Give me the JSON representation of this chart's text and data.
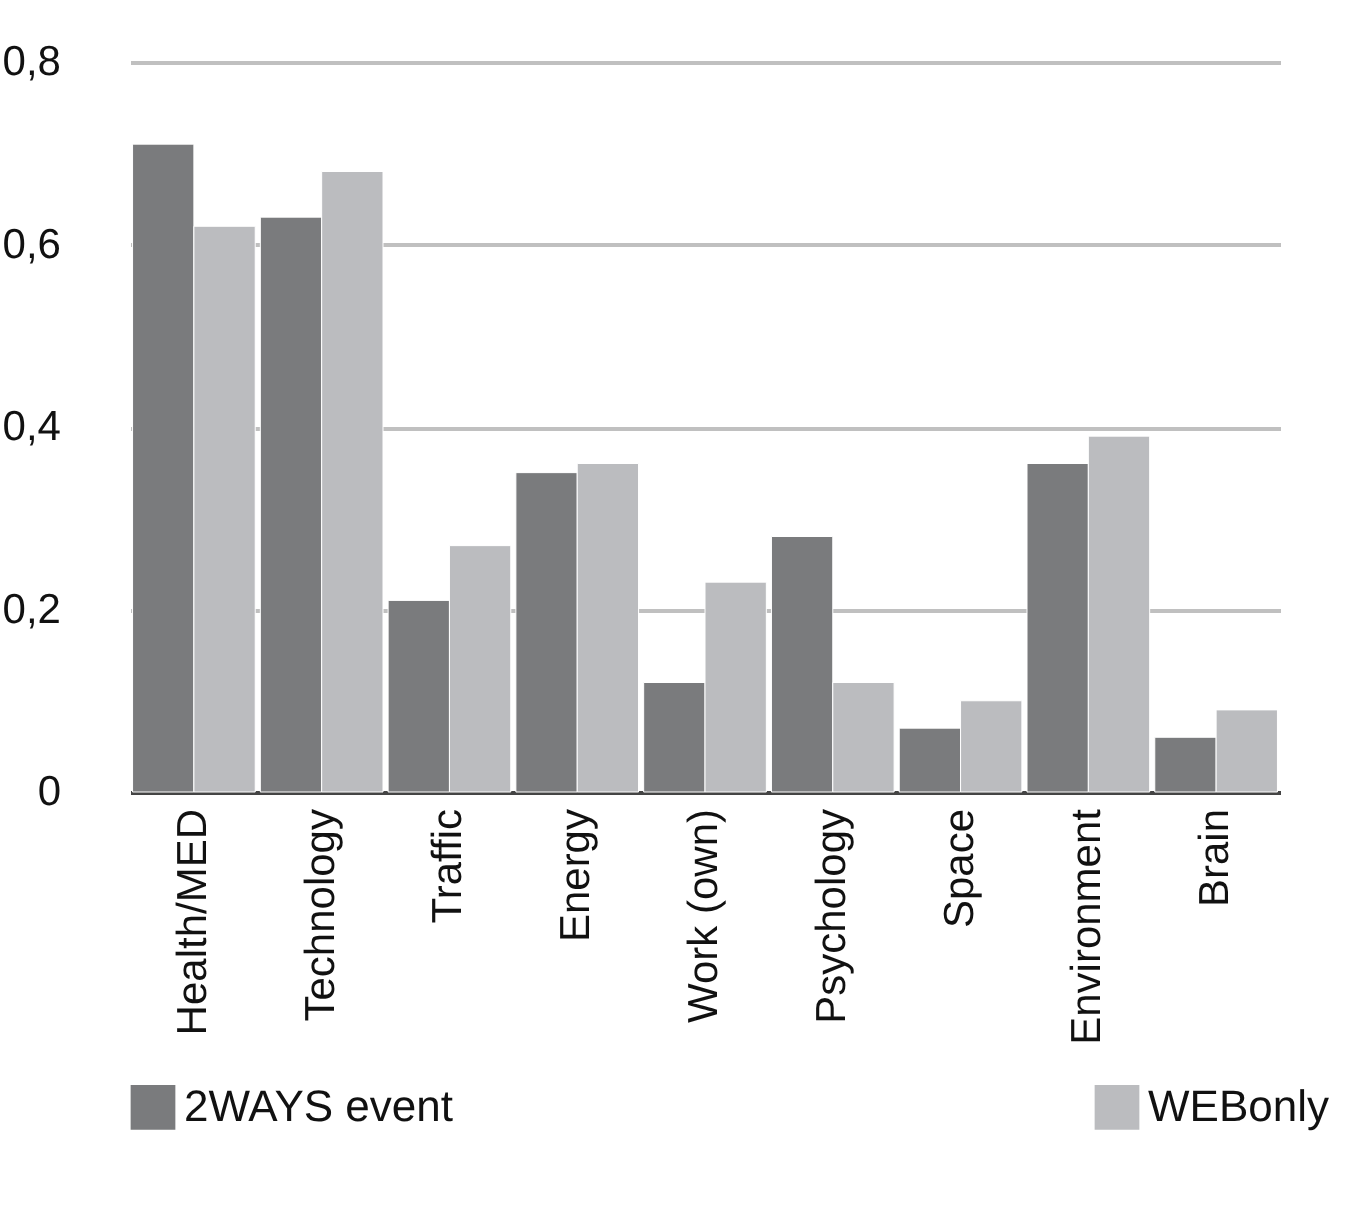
{
  "chart_data": {
    "type": "bar",
    "categories": [
      "Health/MED",
      "Technology",
      "Traffic",
      "Energy",
      "Work (own)",
      "Psychology",
      "Space",
      "Environment",
      "Brain"
    ],
    "series": [
      {
        "name": "2WAYS event",
        "color": "#7a7b7d",
        "values": [
          0.71,
          0.63,
          0.21,
          0.35,
          0.12,
          0.28,
          0.07,
          0.36,
          0.06
        ]
      },
      {
        "name": "WEBonly",
        "color": "#bbbcbf",
        "values": [
          0.62,
          0.68,
          0.27,
          0.36,
          0.23,
          0.12,
          0.1,
          0.39,
          0.09
        ]
      }
    ],
    "ylim": [
      0,
      0.8
    ],
    "yticks": [
      {
        "value": 0,
        "label": "0"
      },
      {
        "value": 0.2,
        "label": "0,2"
      },
      {
        "value": 0.4,
        "label": "0,4"
      },
      {
        "value": 0.6,
        "label": "0,6"
      },
      {
        "value": 0.8,
        "label": "0,8"
      }
    ],
    "grid": "y",
    "legend": "bottom"
  }
}
